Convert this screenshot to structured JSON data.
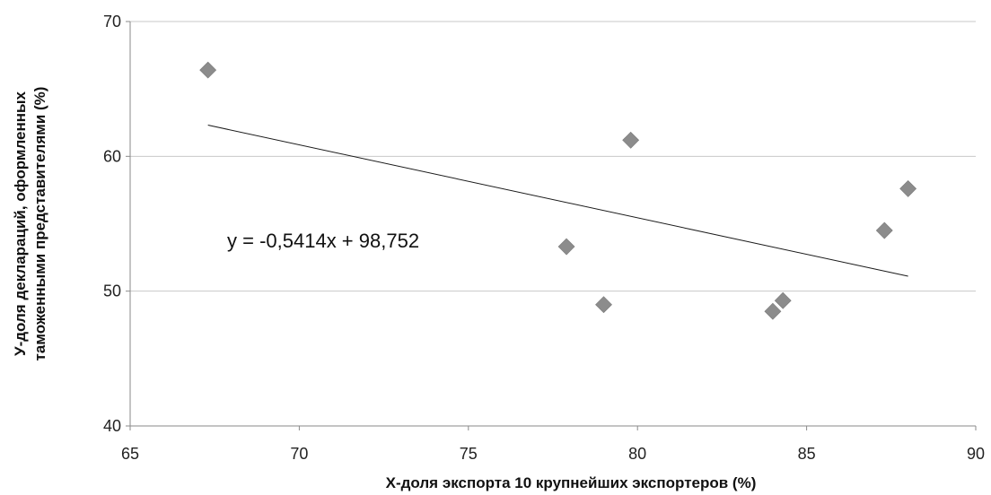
{
  "chart_data": {
    "type": "scatter",
    "title": "",
    "xlabel": "Х-доля экспорта 10 крупнейших экспортеров (%)",
    "ylabel_lines": [
      "У-доля деклараций, оформленных",
      "таможенными представителями (%)"
    ],
    "xlim": [
      65,
      90
    ],
    "ylim": [
      40,
      70
    ],
    "xticks": [
      65,
      70,
      75,
      80,
      85,
      90
    ],
    "yticks": [
      40,
      50,
      60,
      70
    ],
    "grid": "horizontal",
    "legend": "none",
    "marker": "diamond",
    "marker_color": "#8c8c8c",
    "points": [
      {
        "x": 67.3,
        "y": 66.4
      },
      {
        "x": 77.9,
        "y": 53.3
      },
      {
        "x": 79.0,
        "y": 49.0
      },
      {
        "x": 79.8,
        "y": 61.2
      },
      {
        "x": 84.0,
        "y": 48.5
      },
      {
        "x": 84.3,
        "y": 49.3
      },
      {
        "x": 87.3,
        "y": 54.5
      },
      {
        "x": 88.0,
        "y": 57.6
      }
    ],
    "trendline": {
      "slope": -0.5414,
      "intercept": 98.752,
      "x_range": [
        67.3,
        88.0
      ],
      "equation_label": "y = -0,5414x + 98,752"
    }
  }
}
